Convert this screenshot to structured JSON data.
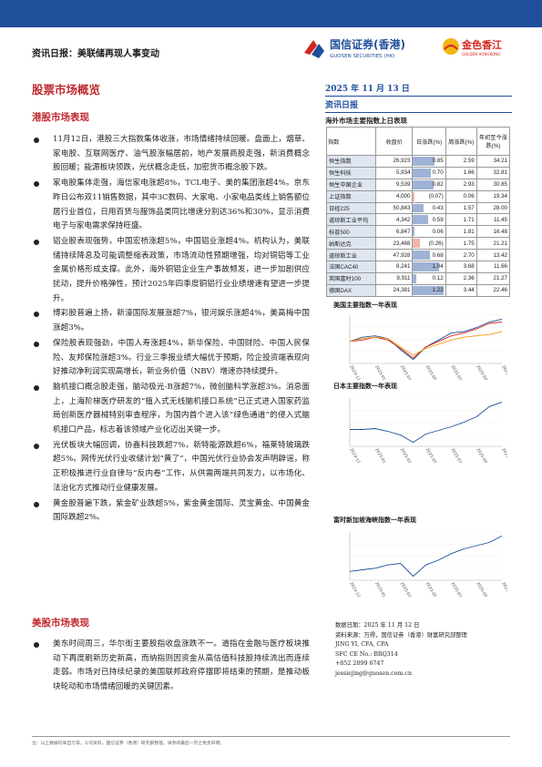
{
  "header": {
    "title": "资讯日报：美联储再现人事变动",
    "logo1_cn": "国信证券(香港)",
    "logo1_en": "GUOSEN SECURITIES (HK)",
    "logo2_cn": "金色香江",
    "logo2_en": "GOLDEN HONGKONG"
  },
  "section_title": "股票市场概览",
  "hk": {
    "subtitle": "港股市场表现",
    "bullets": [
      "11月12日，港股三大指数集体收涨，市场情绪持续回暖。盘面上，烟草、家电股、互联网医疗、油气股涨幅居前，地产发展商股走强，新消费概念股回暖；能源板块领跌，光伏概念走低，加密货币概念股下跌。",
      "家电股集体走强，海信家电涨超8%，TCL电子、美的集团涨超4%。京东昨日公布双11销售数据，其中3C数码、大家电、小家电品类线上销售额位居行业首位，日用百货与服饰品类同比增速分别达36%和30%，显示消费电子与家电需求保持旺盛。",
      "铝业股表现强势，中国宏桥涨超5%，中国铝业涨超4%。机构认为，美联储持续降息及可能调整缩表政策，市场流动性预期增强，均对铜铝等工业金属价格形成支撑。此外，海外铜铝企业生产事故频发，进一步加剧供应扰动，提升价格弹性，预计2025年四季度铜铝行业业绩增速有望进一步提升。",
      "博彩股普遍上扬，新濠国际发展涨超7%，银河娱乐涨超4%，美高梅中国涨超3%。",
      "保险股表现强劲，中国人寿涨超4%，新华保险、中国财险、中国人民保险、友邦保险涨超3%。行业三季报业绩大幅优于预期，险企投资端表现向好推动净利润实现高增长，新业务价值（NBV）增速亦持续提升。",
      "脑机接口概念股走强，脑动极光-B涨超7%，微创脑科学涨超3%。消息面上，上海阶梯医疗研发的“植入式无线脑机接口系统”已正式进入国家药监局创新医疗器械特别审查程序，为国内首个进入该“绿色通道”的侵入式脑机接口产品，标志着该领域产业化迈出关键一步。",
      "光伏板块大幅回调，协鑫科技跌超7%，新特能源跌超6%，福莱特玻璃跌超5%。网传光伏行业收储计划“黄了”，中国光伏行业协会发声明辟谣，称正积极推进行业自律与“反内卷”工作，从供需两端共同发力，以市场化、法治化方式推动行业健康发展。",
      "黄金股普遍下跌，紫金矿业跌超5%，紫金黄金国际、灵宝黄金、中国黄金国际跌超2%。"
    ]
  },
  "us": {
    "subtitle": "美股市场表现",
    "bullets": [
      "美东时间周三，华尔街主要股指收盘涨跌不一。道指在金融与医疗板块推动下再度刷新历史新高，而纳指则因资金从高估值科技股持续流出而连续走弱。市场对已持续纪录的美国联邦政府停摆即将结束的预期，是推动板块轮动和市场情绪回暖的关键因素。"
    ]
  },
  "right": {
    "date": "2025 年 11 月 13 日",
    "report_type": "资讯日报",
    "table_title": "海外市场主要指数上日表现",
    "table_headers": [
      "指数",
      "收盘价",
      "日涨跌(%)",
      "周涨跌(%)",
      "年初至今涨跌(%)"
    ],
    "table_rows": [
      {
        "name": "恒生指数",
        "close": "26,923",
        "d": "0.85",
        "w": "2.59",
        "y": "34.21",
        "dv": 0.85
      },
      {
        "name": "恒生科技",
        "close": "5,934",
        "d": "0.70",
        "w": "1.66",
        "y": "32.81",
        "dv": 0.7
      },
      {
        "name": "恒生中国企业",
        "close": "9,539",
        "d": "0.82",
        "w": "2.93",
        "y": "30.85",
        "dv": 0.82
      },
      {
        "name": "上证指数",
        "close": "4,000",
        "d": "(0.07)",
        "w": "0.06",
        "y": "19.34",
        "dv": -0.07
      },
      {
        "name": "日经225",
        "close": "50,843",
        "d": "0.43",
        "w": "1.57",
        "y": "28.00",
        "dv": 0.43
      },
      {
        "name": "道琼斯工业平均",
        "close": "4,342",
        "d": "0.59",
        "w": "1.71",
        "y": "11.45",
        "dv": 0.59
      },
      {
        "name": "标普500",
        "close": "6,847",
        "d": "0.06",
        "w": "1.81",
        "y": "16.48",
        "dv": 0.06
      },
      {
        "name": "纳斯达克",
        "close": "23,468",
        "d": "(0.26)",
        "w": "1.75",
        "y": "21.21",
        "dv": -0.26
      },
      {
        "name": "道琼斯工业",
        "close": "47,928",
        "d": "0.68",
        "w": "2.70",
        "y": "13.42",
        "dv": 0.68
      },
      {
        "name": "法国CAC40",
        "close": "8,241",
        "d": "1.04",
        "w": "3.68",
        "y": "11.66",
        "dv": 1.04
      },
      {
        "name": "英国富时100",
        "close": "9,911",
        "d": "0.12",
        "w": "2.36",
        "y": "21.27",
        "dv": 0.12
      },
      {
        "name": "德国DAX",
        "close": "24,381",
        "d": "1.22",
        "w": "3.44",
        "y": "22.46",
        "dv": 1.22
      }
    ],
    "chart1_title": "美国主要指数一年表现",
    "chart2_title": "日本主要指数一年表现",
    "chart3_title": "富时新加坡海峡指数一年表现",
    "source_date": "数据日期：2025 年 11 月 12 日",
    "source": "资料来源：万得，国信证券（香港）财富研究部整理",
    "contact": [
      "JING YI, CFA, CPA",
      "SFC CE No.: BRQ314",
      "+852 2899 6747",
      "jessiejing@guosen.com.cn"
    ]
  },
  "chart_data": [
    {
      "type": "line",
      "title": "美国主要指数一年表现",
      "x": [
        "2024-11",
        "2024-12",
        "2025-01",
        "2025-02",
        "2025-03",
        "2025-04",
        "2025-05",
        "2025-06",
        "2025-07",
        "2025-08",
        "2025-09",
        "2025-10",
        "2025-11"
      ],
      "series": [
        {
          "values": [
            100,
            103,
            104,
            102,
            94,
            87,
            96,
            101,
            106,
            107,
            110,
            114,
            116
          ],
          "color": "#1f4e9a"
        },
        {
          "values": [
            100,
            101,
            103,
            101,
            95,
            88,
            96,
            100,
            104,
            106,
            109,
            113,
            114
          ],
          "color": "#d4251f"
        },
        {
          "values": [
            100,
            102,
            103,
            102,
            96,
            90,
            95,
            98,
            101,
            103,
            104,
            105,
            107
          ],
          "color": "#f39c12"
        }
      ]
    },
    {
      "type": "line",
      "title": "日本主要指数一年表现",
      "x": [
        "2024-11",
        "2024-12",
        "2025-01",
        "2025-02",
        "2025-03",
        "2025-04",
        "2025-05",
        "2025-06",
        "2025-07",
        "2025-08",
        "2025-09",
        "2025-10",
        "2025-11"
      ],
      "series": [
        {
          "values": [
            100,
            100,
            101,
            98,
            94,
            86,
            95,
            99,
            103,
            108,
            114,
            125,
            130
          ],
          "color": "#1f4e9a"
        }
      ]
    },
    {
      "type": "line",
      "title": "富时新加坡海峡指数一年表现",
      "x": [
        "2024-11",
        "2024-12",
        "2025-01",
        "2025-02",
        "2025-03",
        "2025-04",
        "2025-05",
        "2025-06",
        "2025-07",
        "2025-08",
        "2025-09",
        "2025-10",
        "2025-11"
      ],
      "series": [
        {
          "values": [
            100,
            101,
            102,
            104,
            105,
            97,
            104,
            107,
            111,
            114,
            116,
            118,
            122
          ],
          "color": "#1f4e9a"
        }
      ]
    }
  ],
  "footer": "注：以上数据均来自万得，公司资料，国信证券（香港）研究部整理。请参阅最后一页之免责声明。"
}
